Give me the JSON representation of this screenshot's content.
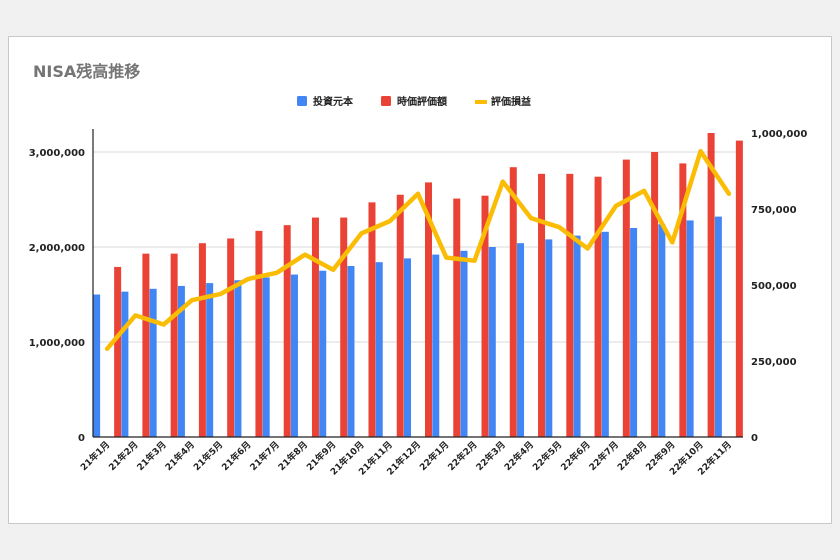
{
  "chart_data": {
    "type": "bar",
    "title": "NISA残高推移",
    "xlabel": "",
    "ylabel": "",
    "legend_position": "top",
    "grid": true,
    "categories": [
      "21年1月",
      "21年2月",
      "21年3月",
      "21年4月",
      "21年5月",
      "21年6月",
      "21年7月",
      "21年8月",
      "21年9月",
      "21年10月",
      "21年11月",
      "21年12月",
      "22年1月",
      "22年2月",
      "22年3月",
      "22年4月",
      "22年5月",
      "22年6月",
      "22年7月",
      "22年8月",
      "22年9月",
      "22年10月",
      "22年11月"
    ],
    "y_left": {
      "min": 0,
      "max": 3200000,
      "ticks": [
        0,
        1000000,
        2000000,
        3000000
      ],
      "tick_labels": [
        "0",
        "1,000,000",
        "2,000,000",
        "3,000,000"
      ]
    },
    "y_right": {
      "min": 0,
      "max": 1000000,
      "ticks": [
        0,
        250000,
        500000,
        750000,
        1000000
      ],
      "tick_labels": [
        "0",
        "250,000",
        "500,000",
        "750,000",
        "1,000,000"
      ]
    },
    "series": [
      {
        "name": "投資元本",
        "type": "bar",
        "axis": "left",
        "color": "#4285F4",
        "values": [
          1500000,
          1530000,
          1560000,
          1590000,
          1620000,
          1650000,
          1680000,
          1710000,
          1750000,
          1800000,
          1840000,
          1880000,
          1920000,
          1960000,
          2000000,
          2040000,
          2080000,
          2120000,
          2160000,
          2200000,
          2240000,
          2280000,
          2320000
        ]
      },
      {
        "name": "時価評価額",
        "type": "bar",
        "axis": "left",
        "color": "#EA4335",
        "values": [
          1790000,
          1930000,
          1930000,
          2040000,
          2090000,
          2170000,
          2230000,
          2310000,
          2310000,
          2470000,
          2550000,
          2680000,
          2510000,
          2540000,
          2840000,
          2770000,
          2770000,
          2740000,
          2920000,
          3000000,
          2880000,
          3200000,
          3120000
        ]
      },
      {
        "name": "評価損益",
        "type": "line",
        "axis": "right",
        "color": "#FBBC04",
        "values": [
          290000,
          400000,
          370000,
          450000,
          470000,
          520000,
          540000,
          600000,
          550000,
          670000,
          710000,
          800000,
          590000,
          580000,
          840000,
          720000,
          690000,
          620000,
          760000,
          810000,
          640000,
          940000,
          800000
        ]
      }
    ]
  }
}
